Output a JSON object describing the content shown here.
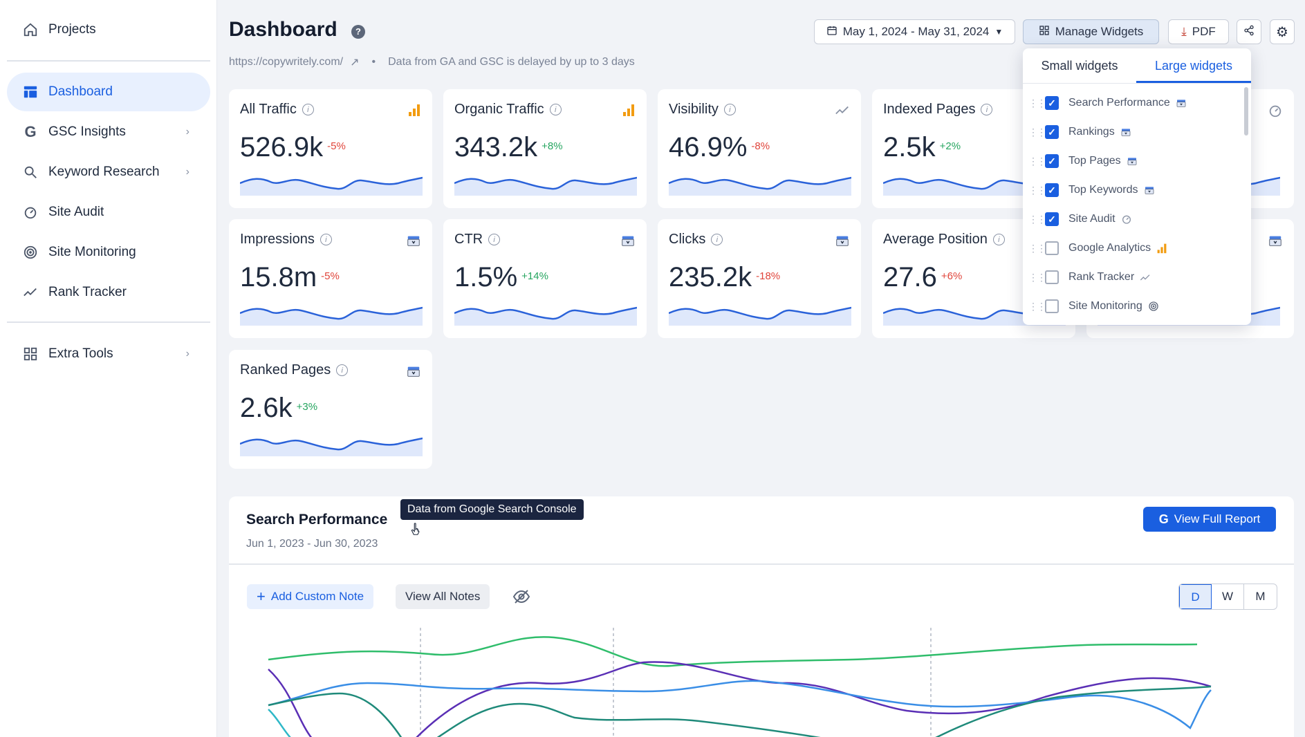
{
  "sidebar": {
    "projects": "Projects",
    "items": [
      {
        "label": "Dashboard"
      },
      {
        "label": "GSC Insights"
      },
      {
        "label": "Keyword Research"
      },
      {
        "label": "Site Audit"
      },
      {
        "label": "Site Monitoring"
      },
      {
        "label": "Rank Tracker"
      }
    ],
    "extra_tools": "Extra Tools"
  },
  "header": {
    "title": "Dashboard",
    "site_url": "https://copywritely.com/",
    "separator": "•",
    "delay_note": "Data from GA and GSC is delayed by up to 3 days",
    "date_range": "May 1, 2024 - May 31, 2024",
    "manage_widgets": "Manage Widgets",
    "pdf": "PDF"
  },
  "widgets": [
    {
      "title": "All Traffic",
      "value": "526.9k",
      "delta": "-5%",
      "sign": "neg"
    },
    {
      "title": "Organic Traffic",
      "value": "343.2k",
      "delta": "+8%",
      "sign": "pos"
    },
    {
      "title": "Visibility",
      "value": "46.9%",
      "delta": "-8%",
      "sign": "neg"
    },
    {
      "title": "Indexed Pages",
      "value": "2.5k",
      "delta": "+2%",
      "sign": "pos"
    },
    {
      "title": "Impressions",
      "value": "15.8m",
      "delta": "-5%",
      "sign": "neg"
    },
    {
      "title": "CTR",
      "value": "1.5%",
      "delta": "+14%",
      "sign": "pos"
    },
    {
      "title": "Clicks",
      "value": "235.2k",
      "delta": "-18%",
      "sign": "neg"
    },
    {
      "title": "Average Position",
      "value": "27.6",
      "delta": "+6%",
      "sign": "neg"
    },
    {
      "title": "Ranked Pages",
      "value": "2.6k",
      "delta": "+3%",
      "sign": "pos"
    }
  ],
  "dropdown": {
    "tab_small": "Small widgets",
    "tab_large": "Large widgets",
    "items": [
      {
        "label": "Search Performance",
        "checked": true
      },
      {
        "label": "Rankings",
        "checked": true
      },
      {
        "label": "Top Pages",
        "checked": true
      },
      {
        "label": "Top Keywords",
        "checked": true
      },
      {
        "label": "Site Audit",
        "checked": true
      },
      {
        "label": "Google Analytics",
        "checked": false
      },
      {
        "label": "Rank Tracker",
        "checked": false
      },
      {
        "label": "Site Monitoring",
        "checked": false
      }
    ]
  },
  "search_performance": {
    "title": "Search Performance",
    "date": "Jun 1, 2023 - Jun 30, 2023",
    "tooltip": "Data from Google Search Console",
    "view_full_report": "View Full Report",
    "add_note": "Add Custom Note",
    "view_notes": "View All Notes",
    "granularity": [
      "D",
      "W",
      "M"
    ]
  },
  "colors": {
    "accent": "#1a5fe0",
    "positive": "#25a55f",
    "negative": "#e0443a",
    "analytics": "#f29c11"
  }
}
